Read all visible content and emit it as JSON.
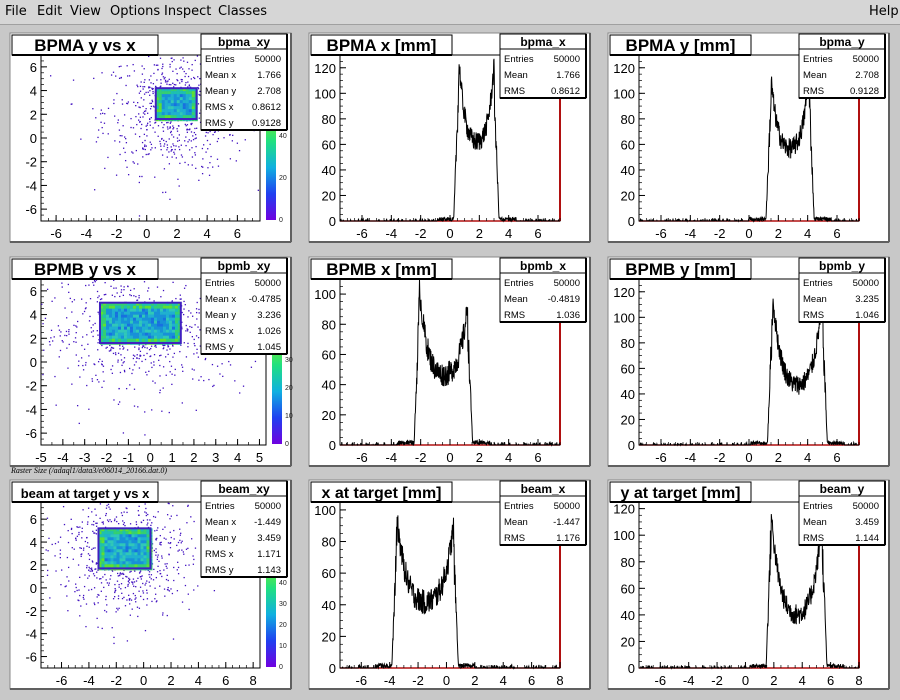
{
  "menu": {
    "file": "File",
    "edit": "Edit",
    "view": "View",
    "options": "Options",
    "inspect": "Inspect",
    "classes": "Classes",
    "help": "Help"
  },
  "canvas_label": "Raster Size (/adaql1/data3/e06014_20166.dat.0)",
  "colors": {
    "canvas_bg": "#c8c8c8",
    "pad_bg": "#ffffff",
    "hist_line": "#000000",
    "axis_right": "#b01010",
    "scatter": "#4010c0"
  },
  "chart_data": [
    {
      "type": "heatmap",
      "title": "BPMA y vs x",
      "name": "bpma_xy",
      "xlim": [
        -7,
        7.5
      ],
      "ylim": [
        -7,
        7
      ],
      "xticks": [
        -6,
        -4,
        -2,
        0,
        2,
        4,
        6
      ],
      "yticks": [
        -6,
        -4,
        -2,
        0,
        2,
        4,
        6
      ],
      "rect": {
        "x": [
          0.6,
          3.3
        ],
        "y": [
          1.6,
          4.2
        ]
      },
      "colorbar_ticks": [
        0,
        20,
        40
      ],
      "stats": [
        [
          "Entries",
          "50000"
        ],
        [
          "Mean x",
          "1.766"
        ],
        [
          "Mean y",
          "2.708"
        ],
        [
          "RMS x",
          "0.8612"
        ],
        [
          "RMS y",
          "0.9128"
        ]
      ]
    },
    {
      "type": "line",
      "title": "BPMA x [mm]",
      "name": "bpma_x",
      "xlim": [
        -7.5,
        7.5
      ],
      "ylim": [
        0,
        130
      ],
      "xticks": [
        -6,
        -4,
        -2,
        0,
        2,
        4,
        6
      ],
      "yticks": [
        0,
        20,
        40,
        60,
        80,
        100,
        120
      ],
      "shape": {
        "lo": 0.6,
        "hi": 3.0,
        "peakL": 128,
        "peakR": 122,
        "trough": 60
      },
      "stats": [
        [
          "Entries",
          "50000"
        ],
        [
          "Mean",
          "1.766"
        ],
        [
          "RMS",
          "0.8612"
        ]
      ]
    },
    {
      "type": "line",
      "title": "BPMA y [mm]",
      "name": "bpma_y",
      "xlim": [
        -7.5,
        7.5
      ],
      "ylim": [
        0,
        130
      ],
      "xticks": [
        -6,
        -4,
        -2,
        0,
        2,
        4,
        6
      ],
      "yticks": [
        0,
        20,
        40,
        60,
        80,
        100,
        120
      ],
      "shape": {
        "lo": 1.5,
        "hi": 4.1,
        "peakL": 112,
        "peakR": 118,
        "trough": 55
      },
      "stats": [
        [
          "Entries",
          "50000"
        ],
        [
          "Mean",
          "2.708"
        ],
        [
          "RMS",
          "0.9128"
        ]
      ]
    },
    {
      "type": "heatmap",
      "title": "BPMB y vs x",
      "name": "bpmb_xy",
      "xlim": [
        -5,
        5.3
      ],
      "ylim": [
        -7,
        7
      ],
      "xticks": [
        -5,
        -4,
        -3,
        -2,
        -1,
        0,
        1,
        2,
        3,
        4,
        5
      ],
      "yticks": [
        -6,
        -4,
        -2,
        0,
        2,
        4,
        6
      ],
      "rect": {
        "x": [
          -2.3,
          1.4
        ],
        "y": [
          1.6,
          5.0
        ]
      },
      "colorbar_ticks": [
        0,
        10,
        20,
        30
      ],
      "stats": [
        [
          "Entries",
          "50000"
        ],
        [
          "Mean x",
          "-0.4785"
        ],
        [
          "Mean y",
          "3.236"
        ],
        [
          "RMS x",
          "1.026"
        ],
        [
          "RMS y",
          "1.045"
        ]
      ]
    },
    {
      "type": "line",
      "title": "BPMB x [mm]",
      "name": "bpmb_x",
      "xlim": [
        -7.5,
        7.5
      ],
      "ylim": [
        0,
        110
      ],
      "xticks": [
        -6,
        -4,
        -2,
        0,
        2,
        4,
        6
      ],
      "yticks": [
        0,
        20,
        40,
        60,
        80,
        100
      ],
      "shape": {
        "lo": -2.1,
        "hi": 1.2,
        "peakL": 105,
        "peakR": 92,
        "trough": 45
      },
      "stats": [
        [
          "Entries",
          "50000"
        ],
        [
          "Mean",
          "-0.4819"
        ],
        [
          "RMS",
          "1.036"
        ]
      ]
    },
    {
      "type": "line",
      "title": "BPMB y [mm]",
      "name": "bpmb_y",
      "xlim": [
        -7.5,
        7.5
      ],
      "ylim": [
        0,
        130
      ],
      "xticks": [
        -6,
        -4,
        -2,
        0,
        2,
        4,
        6
      ],
      "yticks": [
        0,
        20,
        40,
        60,
        80,
        100,
        120
      ],
      "shape": {
        "lo": 1.6,
        "hi": 5.0,
        "peakL": 118,
        "peakR": 115,
        "trough": 45
      },
      "stats": [
        [
          "Entries",
          "50000"
        ],
        [
          "Mean",
          "3.235"
        ],
        [
          "RMS",
          "1.046"
        ]
      ]
    },
    {
      "type": "heatmap",
      "title": "beam at target y vs x",
      "name": "beam_xy",
      "xlim": [
        -7.5,
        8.5
      ],
      "ylim": [
        -7,
        7.5
      ],
      "xticks": [
        -6,
        -4,
        -2,
        0,
        2,
        4,
        6,
        8
      ],
      "yticks": [
        -6,
        -4,
        -2,
        0,
        2,
        4,
        6
      ],
      "rect": {
        "x": [
          -3.3,
          0.5
        ],
        "y": [
          1.7,
          5.2
        ]
      },
      "colorbar_ticks": [
        0,
        10,
        20,
        30,
        40
      ],
      "stats": [
        [
          "Entries",
          "50000"
        ],
        [
          "Mean x",
          "-1.449"
        ],
        [
          "Mean y",
          "3.459"
        ],
        [
          "RMS x",
          "1.171"
        ],
        [
          "RMS y",
          "1.143"
        ]
      ]
    },
    {
      "type": "line",
      "title": "x at target [mm]",
      "name": "beam_x",
      "xlim": [
        -7.5,
        8
      ],
      "ylim": [
        0,
        105
      ],
      "xticks": [
        -6,
        -4,
        -2,
        0,
        2,
        4,
        6,
        8
      ],
      "yticks": [
        0,
        20,
        40,
        60,
        80,
        100
      ],
      "shape": {
        "lo": -3.5,
        "hi": 0.5,
        "peakL": 95,
        "peakR": 90,
        "trough": 40
      },
      "stats": [
        [
          "Entries",
          "50000"
        ],
        [
          "Mean",
          "-1.447"
        ],
        [
          "RMS",
          "1.176"
        ]
      ]
    },
    {
      "type": "line",
      "title": "y at target [mm]",
      "name": "beam_y",
      "xlim": [
        -7.5,
        8
      ],
      "ylim": [
        0,
        125
      ],
      "xticks": [
        -6,
        -4,
        -2,
        0,
        2,
        4,
        6,
        8
      ],
      "yticks": [
        0,
        20,
        40,
        60,
        80,
        100,
        120
      ],
      "shape": {
        "lo": 1.8,
        "hi": 5.4,
        "peakL": 118,
        "peakR": 112,
        "trough": 38
      },
      "stats": [
        [
          "Entries",
          "50000"
        ],
        [
          "Mean",
          "3.459"
        ],
        [
          "RMS",
          "1.144"
        ]
      ]
    }
  ]
}
